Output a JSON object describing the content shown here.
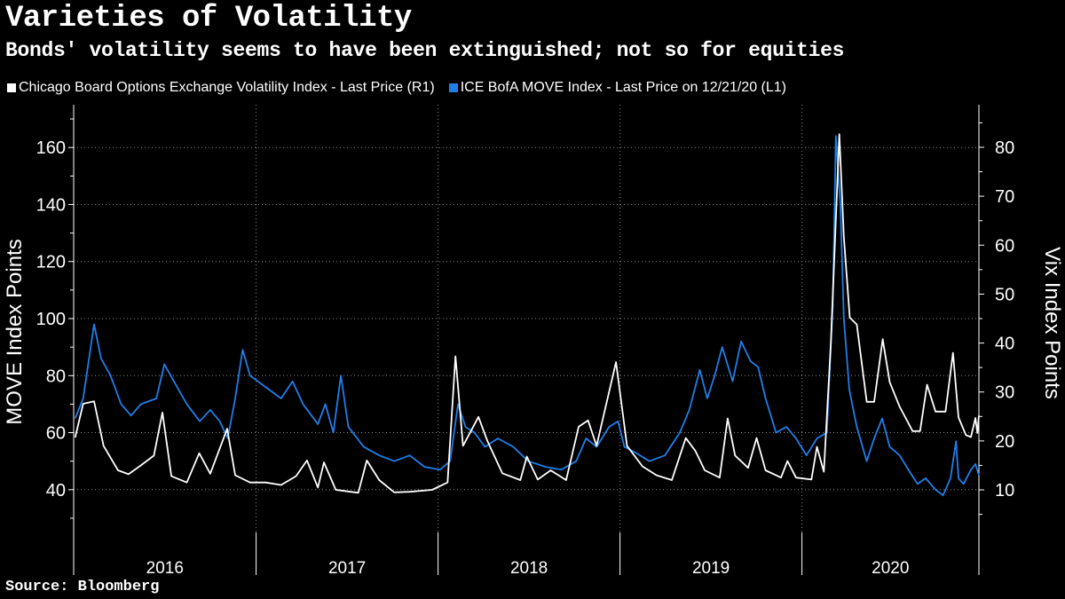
{
  "title": "Varieties of Volatility",
  "subtitle": "Bonds' volatility seems to have been extinguished; not so for equities",
  "source": "Source: Bloomberg",
  "colors": {
    "background": "#000000",
    "vix": "#ffffff",
    "move": "#1f7fea",
    "grid": "#8a8a8a",
    "axis": "#ffffff"
  },
  "chart_data": {
    "type": "line",
    "x_range": [
      "2016-01-01",
      "2020-12-21"
    ],
    "x_period_labels": [
      "2016",
      "2017",
      "2018",
      "2019",
      "2020"
    ],
    "left_axis": {
      "label": "MOVE Index Points",
      "ticks": [
        40,
        60,
        80,
        100,
        120,
        140,
        160
      ],
      "ylim": [
        25,
        175
      ]
    },
    "right_axis": {
      "label": "Vix Index Points",
      "ticks": [
        10,
        20,
        30,
        40,
        50,
        60,
        70,
        80
      ],
      "ylim": [
        1.3,
        88.7
      ]
    },
    "grid": true,
    "series": [
      {
        "name": "Chicago Board Options Exchange Volatility Index - Last Price (R1)",
        "axis": "right",
        "color": "#ffffff",
        "points": [
          [
            "2016-01-04",
            20.7
          ],
          [
            "2016-01-20",
            27.6
          ],
          [
            "2016-02-11",
            28.1
          ],
          [
            "2016-03-01",
            19.0
          ],
          [
            "2016-03-30",
            14.0
          ],
          [
            "2016-04-20",
            13.2
          ],
          [
            "2016-05-15",
            15.0
          ],
          [
            "2016-06-10",
            17.0
          ],
          [
            "2016-06-27",
            25.8
          ],
          [
            "2016-07-15",
            12.8
          ],
          [
            "2016-08-15",
            11.5
          ],
          [
            "2016-09-09",
            17.5
          ],
          [
            "2016-10-01",
            13.3
          ],
          [
            "2016-11-04",
            22.5
          ],
          [
            "2016-11-20",
            13.0
          ],
          [
            "2016-12-20",
            11.5
          ],
          [
            "2017-01-20",
            11.5
          ],
          [
            "2017-02-20",
            11.0
          ],
          [
            "2017-03-22",
            12.8
          ],
          [
            "2017-04-13",
            16.0
          ],
          [
            "2017-05-05",
            10.5
          ],
          [
            "2017-05-17",
            15.6
          ],
          [
            "2017-06-10",
            10.0
          ],
          [
            "2017-07-25",
            9.4
          ],
          [
            "2017-08-11",
            16.0
          ],
          [
            "2017-09-05",
            12.0
          ],
          [
            "2017-10-05",
            9.5
          ],
          [
            "2017-11-05",
            9.6
          ],
          [
            "2017-12-20",
            10.0
          ],
          [
            "2018-01-20",
            11.5
          ],
          [
            "2018-02-05",
            37.3
          ],
          [
            "2018-02-20",
            19.0
          ],
          [
            "2018-03-23",
            24.9
          ],
          [
            "2018-04-10",
            20.0
          ],
          [
            "2018-05-10",
            13.4
          ],
          [
            "2018-06-15",
            12.0
          ],
          [
            "2018-06-28",
            16.8
          ],
          [
            "2018-07-20",
            12.1
          ],
          [
            "2018-08-15",
            14.0
          ],
          [
            "2018-09-15",
            12.0
          ],
          [
            "2018-10-10",
            22.9
          ],
          [
            "2018-10-29",
            24.2
          ],
          [
            "2018-11-15",
            19.0
          ],
          [
            "2018-12-24",
            36.1
          ],
          [
            "2019-01-15",
            19.0
          ],
          [
            "2019-02-15",
            14.8
          ],
          [
            "2019-03-15",
            13.0
          ],
          [
            "2019-04-15",
            12.0
          ],
          [
            "2019-05-13",
            20.6
          ],
          [
            "2019-06-01",
            18.0
          ],
          [
            "2019-06-20",
            14.0
          ],
          [
            "2019-07-20",
            12.5
          ],
          [
            "2019-08-05",
            24.6
          ],
          [
            "2019-08-20",
            17.0
          ],
          [
            "2019-09-15",
            14.5
          ],
          [
            "2019-10-02",
            20.6
          ],
          [
            "2019-10-20",
            14.0
          ],
          [
            "2019-11-20",
            12.5
          ],
          [
            "2019-12-03",
            15.9
          ],
          [
            "2019-12-20",
            12.5
          ],
          [
            "2020-01-20",
            12.1
          ],
          [
            "2020-01-31",
            18.8
          ],
          [
            "2020-02-14",
            13.7
          ],
          [
            "2020-02-28",
            40.1
          ],
          [
            "2020-03-16",
            82.7
          ],
          [
            "2020-03-25",
            61.7
          ],
          [
            "2020-04-06",
            45.2
          ],
          [
            "2020-04-20",
            43.8
          ],
          [
            "2020-05-10",
            28.0
          ],
          [
            "2020-05-25",
            28.0
          ],
          [
            "2020-06-11",
            40.8
          ],
          [
            "2020-06-25",
            32.0
          ],
          [
            "2020-07-15",
            27.0
          ],
          [
            "2020-08-10",
            22.0
          ],
          [
            "2020-08-25",
            22.0
          ],
          [
            "2020-09-08",
            31.5
          ],
          [
            "2020-09-25",
            26.0
          ],
          [
            "2020-10-15",
            26.0
          ],
          [
            "2020-10-30",
            38.0
          ],
          [
            "2020-11-10",
            24.8
          ],
          [
            "2020-11-25",
            21.2
          ],
          [
            "2020-12-05",
            20.8
          ],
          [
            "2020-12-14",
            24.7
          ],
          [
            "2020-12-18",
            21.6
          ],
          [
            "2020-12-21",
            25.2
          ]
        ]
      },
      {
        "name": "ICE BofA MOVE Index - Last Price on 12/21/20 (L1)",
        "axis": "left",
        "color": "#1f7fea",
        "points": [
          [
            "2016-01-04",
            65
          ],
          [
            "2016-01-20",
            72
          ],
          [
            "2016-02-11",
            98
          ],
          [
            "2016-02-25",
            86
          ],
          [
            "2016-03-15",
            80
          ],
          [
            "2016-04-05",
            70
          ],
          [
            "2016-04-25",
            66
          ],
          [
            "2016-05-15",
            70
          ],
          [
            "2016-06-15",
            72
          ],
          [
            "2016-07-01",
            84
          ],
          [
            "2016-07-20",
            78
          ],
          [
            "2016-08-15",
            70
          ],
          [
            "2016-09-10",
            64
          ],
          [
            "2016-10-01",
            68
          ],
          [
            "2016-10-20",
            64
          ],
          [
            "2016-11-05",
            58
          ],
          [
            "2016-11-20",
            72
          ],
          [
            "2016-12-05",
            89
          ],
          [
            "2016-12-20",
            80
          ],
          [
            "2017-01-20",
            76
          ],
          [
            "2017-02-20",
            72
          ],
          [
            "2017-03-15",
            78
          ],
          [
            "2017-04-05",
            70
          ],
          [
            "2017-05-05",
            63
          ],
          [
            "2017-05-20",
            70
          ],
          [
            "2017-06-05",
            60
          ],
          [
            "2017-06-20",
            80
          ],
          [
            "2017-07-05",
            62
          ],
          [
            "2017-08-05",
            55
          ],
          [
            "2017-09-05",
            52
          ],
          [
            "2017-10-05",
            50
          ],
          [
            "2017-11-05",
            52
          ],
          [
            "2017-12-05",
            48
          ],
          [
            "2018-01-05",
            47
          ],
          [
            "2018-01-25",
            50
          ],
          [
            "2018-02-10",
            70
          ],
          [
            "2018-02-25",
            62
          ],
          [
            "2018-03-15",
            60
          ],
          [
            "2018-04-05",
            55
          ],
          [
            "2018-05-01",
            58
          ],
          [
            "2018-06-01",
            55
          ],
          [
            "2018-07-01",
            50
          ],
          [
            "2018-08-05",
            48
          ],
          [
            "2018-09-05",
            47
          ],
          [
            "2018-10-05",
            50
          ],
          [
            "2018-10-25",
            58
          ],
          [
            "2018-11-15",
            55
          ],
          [
            "2018-12-10",
            62
          ],
          [
            "2018-12-28",
            64
          ],
          [
            "2019-01-10",
            55
          ],
          [
            "2019-02-01",
            53
          ],
          [
            "2019-03-01",
            50
          ],
          [
            "2019-04-01",
            52
          ],
          [
            "2019-05-01",
            60
          ],
          [
            "2019-05-20",
            68
          ],
          [
            "2019-06-10",
            82
          ],
          [
            "2019-06-25",
            72
          ],
          [
            "2019-07-10",
            80
          ],
          [
            "2019-07-25",
            90
          ],
          [
            "2019-08-15",
            78
          ],
          [
            "2019-09-01",
            92
          ],
          [
            "2019-09-20",
            85
          ],
          [
            "2019-10-05",
            83
          ],
          [
            "2019-10-20",
            72
          ],
          [
            "2019-11-10",
            60
          ],
          [
            "2019-12-01",
            62
          ],
          [
            "2019-12-20",
            58
          ],
          [
            "2020-01-10",
            52
          ],
          [
            "2020-01-31",
            58
          ],
          [
            "2020-02-20",
            60
          ],
          [
            "2020-03-03",
            105
          ],
          [
            "2020-03-09",
            164
          ],
          [
            "2020-03-18",
            140
          ],
          [
            "2020-03-25",
            100
          ],
          [
            "2020-04-05",
            75
          ],
          [
            "2020-04-20",
            62
          ],
          [
            "2020-05-10",
            50
          ],
          [
            "2020-05-25",
            58
          ],
          [
            "2020-06-10",
            65
          ],
          [
            "2020-06-25",
            55
          ],
          [
            "2020-07-15",
            52
          ],
          [
            "2020-08-05",
            46
          ],
          [
            "2020-08-20",
            42
          ],
          [
            "2020-09-05",
            44
          ],
          [
            "2020-09-25",
            40
          ],
          [
            "2020-10-10",
            38
          ],
          [
            "2020-10-25",
            44
          ],
          [
            "2020-11-05",
            57
          ],
          [
            "2020-11-10",
            44
          ],
          [
            "2020-11-20",
            42
          ],
          [
            "2020-12-05",
            47
          ],
          [
            "2020-12-14",
            49
          ],
          [
            "2020-12-21",
            45
          ]
        ]
      }
    ]
  }
}
